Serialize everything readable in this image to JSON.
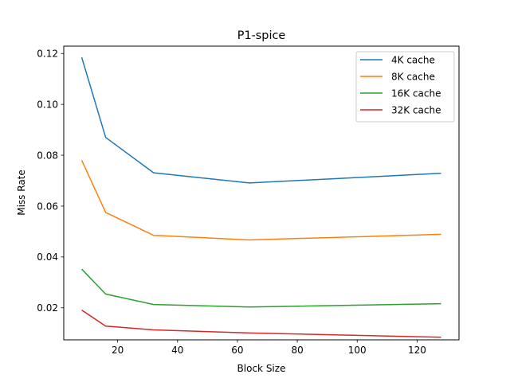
{
  "chart_data": {
    "type": "line",
    "title": "P1-spice",
    "xlabel": "Block Size",
    "ylabel": "Miss Rate",
    "x": [
      8,
      16,
      32,
      64,
      128
    ],
    "xlim": [
      2,
      134
    ],
    "ylim": [
      0.0074,
      0.1229
    ],
    "xticks": [
      20,
      40,
      60,
      80,
      100,
      120
    ],
    "yticks": [
      0.02,
      0.04,
      0.06,
      0.08,
      0.1,
      0.12
    ],
    "xtick_labels": [
      "20",
      "40",
      "60",
      "80",
      "100",
      "120"
    ],
    "ytick_labels": [
      "0.02",
      "0.04",
      "0.06",
      "0.08",
      "0.10",
      "0.12"
    ],
    "grid": false,
    "legend_position": "top-right",
    "series": [
      {
        "name": "4K cache",
        "color": "#1f77b4",
        "values": [
          0.1185,
          0.087,
          0.0731,
          0.0691,
          0.0729
        ]
      },
      {
        "name": "8K cache",
        "color": "#ff7f0e",
        "values": [
          0.078,
          0.0575,
          0.0485,
          0.0467,
          0.0489
        ]
      },
      {
        "name": "16K cache",
        "color": "#2ca02c",
        "values": [
          0.0352,
          0.0254,
          0.0213,
          0.0203,
          0.0216
        ]
      },
      {
        "name": "32K cache",
        "color": "#d62728",
        "values": [
          0.0191,
          0.0128,
          0.0113,
          0.0101,
          0.0084
        ]
      }
    ]
  }
}
